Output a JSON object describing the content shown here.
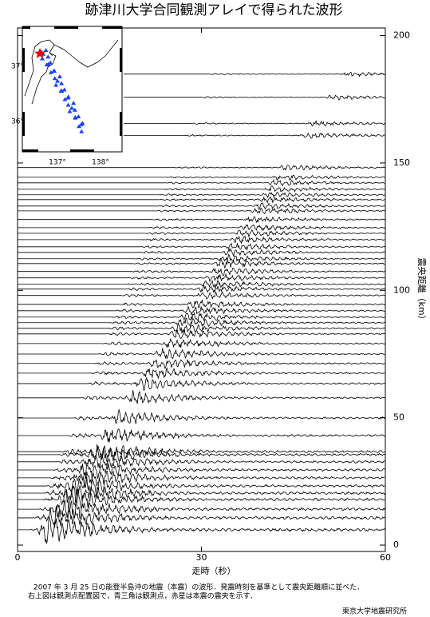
{
  "chart_data": {
    "type": "record-section",
    "title": "跡津川大学合同観測アレイで得られた波形",
    "x_label": "走時（秒）",
    "y_label": "震央距離（km）",
    "xlim": [
      0,
      60
    ],
    "xticks": [
      0,
      30,
      60
    ],
    "ylim": [
      -2.5,
      203
    ],
    "yticks": [
      0,
      50,
      100,
      150,
      200
    ],
    "color": "#000000",
    "distances": [
      184.9,
      175.8,
      165.5,
      160.8,
      148.2,
      144.4,
      142.2,
      139.7,
      137.5,
      135.6,
      133.1,
      131.2,
      127.8,
      124.6,
      122.4,
      119.9,
      117.1,
      114.9,
      112.4,
      110.5,
      107.4,
      104.9,
      102.4,
      100.5,
      98,
      94.5,
      92,
      89.5,
      87.3,
      85.1,
      82.9,
      79.1,
      75,
      71.3,
      67.5,
      63.4,
      57.8,
      49.9,
      43,
      36.7,
      35.5,
      32.7,
      29.5,
      26.4,
      23.2,
      20.4,
      17.9,
      14.1,
      10.7,
      6
    ],
    "onsets": [
      30.8,
      29.4,
      27.7,
      26.9,
      24.9,
      24.3,
      23.9,
      23.5,
      23.2,
      22.9,
      22.5,
      22.2,
      21.6,
      21.1,
      20.7,
      20.3,
      19.9,
      19.5,
      19.1,
      18.8,
      18.3,
      17.9,
      17.5,
      17.2,
      16.8,
      16.2,
      15.8,
      15.4,
      15.1,
      14.7,
      14.4,
      13.8,
      13.1,
      12.5,
      11.9,
      11.2,
      10.3,
      9.0,
      7.9,
      6.9,
      6.7,
      6.3,
      5.8,
      5.3,
      4.7,
      4.3,
      3.9,
      3.3,
      2.7,
      2.0
    ],
    "map": {
      "lat_labels": [
        "37°",
        "36°"
      ],
      "lon_labels": [
        "137°",
        "138°"
      ]
    },
    "caption": [
      "2007 年 3 月 25 日の能登半島沖の地震（本震）の波形．発震時刻を基準として震央距離順に並べた．",
      "右上図は観測点配置図で，青三角は観測点，赤星は本震の震央を示す．"
    ],
    "credit": "東京大学地震研究所"
  }
}
